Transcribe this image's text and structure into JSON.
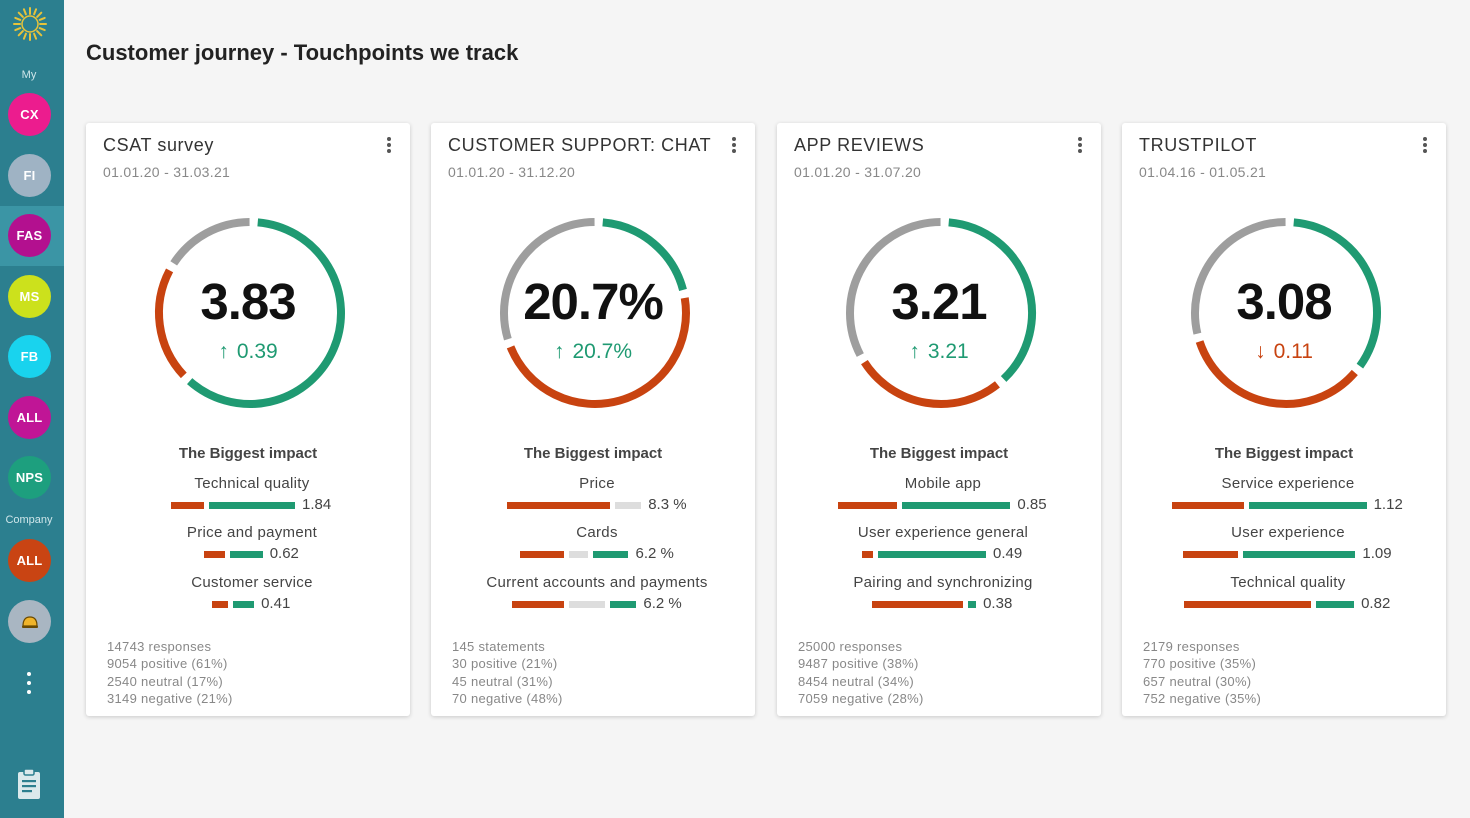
{
  "page": {
    "title": "Customer journey - Touchpoints we track"
  },
  "colors": {
    "sidebar": "#2c7f8f",
    "negative": "#c84310",
    "neutral": "#dddddd",
    "positive": "#1f9a72",
    "gauge_gray": "#9e9e9e"
  },
  "sidebar": {
    "logo_icon": "sun-logo-icon",
    "my_label": "My",
    "my_items": [
      {
        "label": "CX",
        "color": "#ec1c8e"
      },
      {
        "label": "FI",
        "color": "#9fb3c4"
      },
      {
        "label": "FAS",
        "color": "#b3108f"
      },
      {
        "label": "MS",
        "color": "#cce11c"
      },
      {
        "label": "FB",
        "color": "#19d3ee"
      },
      {
        "label": "ALL",
        "color": "#c01596"
      },
      {
        "label": "NPS",
        "color": "#1d9f7e"
      }
    ],
    "company_label": "Company",
    "company_items": [
      {
        "label": "ALL",
        "color": "#c94413"
      },
      {
        "label": "",
        "icon": "helmet-icon",
        "color": "#a9b6c2"
      }
    ],
    "more_icon": "more-vertical-icon",
    "bottom_icon": "clipboard-icon"
  },
  "cards": [
    {
      "title": "CSAT survey",
      "dates": "01.01.20 - 31.03.21",
      "value": "3.83",
      "delta": "0.39",
      "delta_direction": "up",
      "gauge_fractions": {
        "positive": 0.61,
        "neutral": 0.17,
        "negative": 0.21
      },
      "impact_title": "The Biggest impact",
      "impacts": [
        {
          "label": "Technical quality",
          "value": "1.84",
          "neg": 0.25,
          "neu": 0,
          "pos": 0.65
        },
        {
          "label": "Price and payment",
          "value": "0.62",
          "neg": 0.16,
          "neu": 0,
          "pos": 0.25
        },
        {
          "label": "Customer service",
          "value": "0.41",
          "neg": 0.12,
          "neu": 0,
          "pos": 0.16
        }
      ],
      "stats": [
        "14743 responses",
        "9054 positive (61%)",
        "2540 neutral (17%)",
        "3149 negative (21%)"
      ]
    },
    {
      "title": "CUSTOMER SUPPORT: CHAT",
      "dates": "01.01.20 - 31.12.20",
      "value": "20.7%",
      "delta": "20.7%",
      "delta_direction": "up",
      "gauge_fractions": {
        "positive": 0.21,
        "neutral": 0.31,
        "negative": 0.48
      },
      "impact_title": "The Biggest impact",
      "impacts": [
        {
          "label": "Price",
          "value": "8.3 %",
          "neg": 0.78,
          "neu": 0.2,
          "pos": 0
        },
        {
          "label": "Cards",
          "value": "6.2 %",
          "neg": 0.34,
          "neu": 0.14,
          "pos": 0.27
        },
        {
          "label": "Current accounts and payments",
          "value": "6.2 %",
          "neg": 0.4,
          "neu": 0.27,
          "pos": 0.2
        }
      ],
      "stats": [
        "145 statements",
        "30 positive (21%)",
        "45 neutral (31%)",
        "70 negative (48%)"
      ]
    },
    {
      "title": "APP REVIEWS",
      "dates": "01.01.20 - 31.07.20",
      "value": "3.21",
      "delta": "3.21",
      "delta_direction": "up",
      "gauge_fractions": {
        "positive": 0.38,
        "neutral": 0.34,
        "negative": 0.28
      },
      "impact_title": "The Biggest impact",
      "impacts": [
        {
          "label": "Mobile app",
          "value": "0.85",
          "neg": 0.45,
          "neu": 0,
          "pos": 0.82
        },
        {
          "label": "User experience general",
          "value": "0.49",
          "neg": 0.08,
          "neu": 0,
          "pos": 0.82
        },
        {
          "label": "Pairing and synchronizing",
          "value": "0.38",
          "neg": 0.69,
          "neu": 0,
          "pos": 0.06
        }
      ],
      "stats": [
        "25000 responses",
        "9487 positive (38%)",
        "8454 neutral (34%)",
        "7059 negative (28%)"
      ]
    },
    {
      "title": "TRUSTPILOT",
      "dates": "01.04.16 - 01.05.21",
      "value": "3.08",
      "delta": "0.11",
      "delta_direction": "down",
      "gauge_fractions": {
        "positive": 0.35,
        "neutral": 0.3,
        "negative": 0.35
      },
      "impact_title": "The Biggest impact",
      "impacts": [
        {
          "label": "Service experience",
          "value": "1.12",
          "neg": 0.55,
          "neu": 0,
          "pos": 0.89
        },
        {
          "label": "User experience",
          "value": "1.09",
          "neg": 0.42,
          "neu": 0,
          "pos": 0.85
        },
        {
          "label": "Technical quality",
          "value": "0.82",
          "neg": 0.96,
          "neu": 0,
          "pos": 0.29
        }
      ],
      "stats": [
        "2179 responses",
        "770 positive (35%)",
        "657 neutral (30%)",
        "752 negative (35%)"
      ]
    }
  ]
}
